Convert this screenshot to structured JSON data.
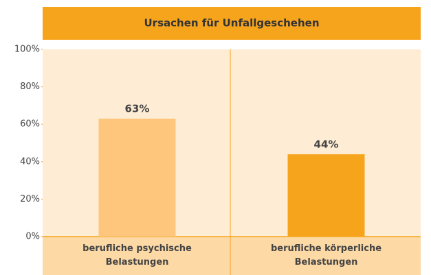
{
  "chart_data": {
    "type": "bar",
    "title": "Ursachen für Unfallgeschehen",
    "categories": [
      "berufliche psychische\nBelastungen",
      "berufliche körperliche\nBelastungen"
    ],
    "values": [
      63,
      44
    ],
    "value_labels": [
      "63%",
      "44%"
    ],
    "colors": [
      "#fdc67c",
      "#f7a41d"
    ],
    "ylim": [
      0,
      100
    ],
    "yticks": [
      {
        "value": 0,
        "label": "0%"
      },
      {
        "value": 20,
        "label": "20%"
      },
      {
        "value": 40,
        "label": "40%"
      },
      {
        "value": 60,
        "label": "60%"
      },
      {
        "value": 80,
        "label": "80%"
      },
      {
        "value": 100,
        "label": "100%"
      }
    ],
    "grid": false
  }
}
